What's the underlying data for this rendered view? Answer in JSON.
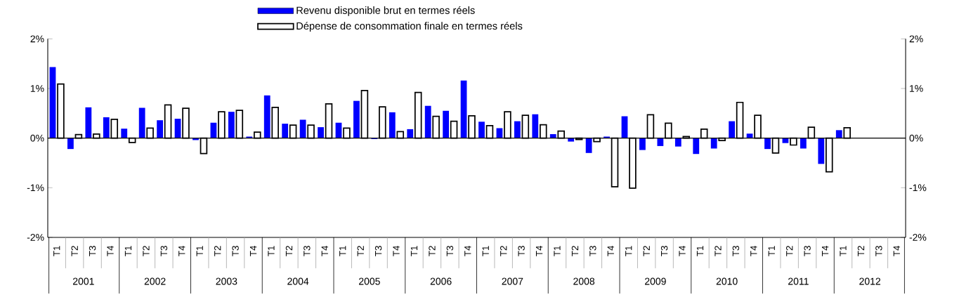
{
  "chart_data": {
    "type": "bar",
    "categories": [
      "T1",
      "T2",
      "T3",
      "T4",
      "T1",
      "T2",
      "T3",
      "T4",
      "T1",
      "T2",
      "T3",
      "T4",
      "T1",
      "T2",
      "T3",
      "T4",
      "T1",
      "T2",
      "T3",
      "T4",
      "T1",
      "T2",
      "T3",
      "T4",
      "T1",
      "T2",
      "T3",
      "T4",
      "T1",
      "T2",
      "T3",
      "T4",
      "T1",
      "T2",
      "T3",
      "T4",
      "T1",
      "T2",
      "T3",
      "T4",
      "T1",
      "T2",
      "T3",
      "T4",
      "T1",
      "T2",
      "T3",
      "T4"
    ],
    "series": [
      {
        "name": "Revenu disponible brut en termes réels",
        "color": "#0000ff",
        "values": [
          1.43,
          -0.22,
          0.62,
          0.42,
          0.19,
          0.61,
          0.36,
          0.39,
          -0.04,
          0.31,
          0.53,
          0.03,
          0.86,
          0.29,
          0.37,
          0.22,
          0.31,
          0.75,
          -0.02,
          0.52,
          0.18,
          0.65,
          0.55,
          1.16,
          0.33,
          0.2,
          0.34,
          0.48,
          0.08,
          -0.07,
          -0.3,
          0.03,
          0.44,
          -0.24,
          -0.16,
          -0.17,
          -0.32,
          -0.21,
          0.34,
          0.09,
          -0.22,
          -0.1,
          -0.21,
          -0.52,
          0.16,
          null,
          null,
          null
        ]
      },
      {
        "name": "Dépense de consommation finale en termes réels",
        "color": "#ffffff",
        "values": [
          1.09,
          0.07,
          0.08,
          0.38,
          -0.09,
          0.2,
          0.67,
          0.6,
          -0.31,
          0.53,
          0.56,
          0.12,
          0.62,
          0.26,
          0.26,
          0.69,
          0.2,
          0.96,
          0.63,
          0.13,
          0.92,
          0.44,
          0.34,
          0.45,
          0.25,
          0.53,
          0.46,
          0.27,
          0.14,
          -0.03,
          -0.07,
          -0.98,
          -1.01,
          0.47,
          0.3,
          0.03,
          0.18,
          -0.05,
          0.72,
          0.46,
          -0.3,
          -0.14,
          0.22,
          -0.68,
          0.21,
          null,
          null,
          null
        ]
      }
    ],
    "annotations": [
      "2001",
      "2002",
      "2003",
      "2004",
      "2005",
      "2006",
      "2007",
      "2008",
      "2009",
      "2010",
      "2011",
      "2012"
    ],
    "ylim": [
      -2,
      2
    ],
    "yticks": [
      {
        "value": -2,
        "label": "-2%"
      },
      {
        "value": -1,
        "label": "-1%"
      },
      {
        "value": 0,
        "label": "0%"
      },
      {
        "value": 1,
        "label": "1%"
      },
      {
        "value": 2,
        "label": "2%"
      }
    ],
    "y2lim": [
      -2,
      2
    ],
    "y2ticks": [
      {
        "value": -2,
        "label": "-2%"
      },
      {
        "value": -1,
        "label": "-1%"
      },
      {
        "value": 0,
        "label": "0%"
      },
      {
        "value": 1,
        "label": "1%"
      },
      {
        "value": 2,
        "label": "2%"
      }
    ],
    "legend": "top"
  }
}
